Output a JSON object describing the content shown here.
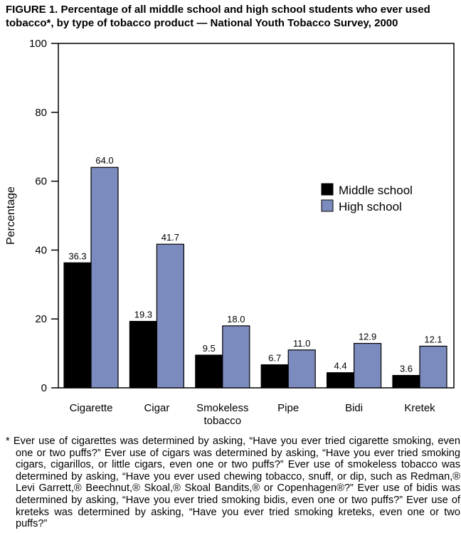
{
  "title": "FIGURE 1. Percentage of all middle school and high school students who ever used tobacco*, by type of tobacco product — National Youth Tobacco Survey, 2000",
  "chart_data": {
    "type": "bar",
    "title": "FIGURE 1. Percentage of all middle school and high school students who ever used tobacco*, by type of tobacco product — National Youth Tobacco Survey, 2000",
    "xlabel": "",
    "ylabel": "Percentage",
    "ylim": [
      0,
      100
    ],
    "yticks": [
      "0",
      "20",
      "40",
      "60",
      "80",
      "100"
    ],
    "categories": [
      "Cigarette",
      "Cigar",
      "Smokeless tobacco",
      "Pipe",
      "Bidi",
      "Kretek"
    ],
    "series": [
      {
        "name": "Middle school",
        "color": "#000000",
        "values": [
          36.3,
          19.3,
          9.5,
          6.7,
          4.4,
          3.6
        ],
        "labels": [
          "36.3",
          "19.3",
          "9.5",
          "6.7",
          "4.4",
          "3.6"
        ]
      },
      {
        "name": "High school",
        "color": "#7b8bbd",
        "values": [
          64.0,
          41.7,
          18.0,
          11.0,
          12.9,
          12.1
        ],
        "labels": [
          "64.0",
          "41.7",
          "18.0",
          "11.0",
          "12.9",
          "12.1"
        ]
      }
    ],
    "grid": false,
    "legend": "right"
  },
  "footnote": "* Ever use of cigarettes was determined by asking, “Have you ever tried cigarette smoking, even one or two puffs?” Ever use of cigars was determined by asking, “Have you ever tried smoking cigars, cigarillos, or little cigars, even one or two puffs?” Ever use of smokeless tobacco was determined by asking, “Have you ever used chewing tobacco, snuff, or dip, such as Redman,® Levi Garrett,® Beechnut,® Skoal,® Skoal Bandits,® or Copenhagen®?” Ever use of bidis was determined by asking, “Have you ever tried smoking bidis, even one or two puffs?” Ever use of kreteks was determined by asking, “Have you ever tried smoking kreteks, even one or two puffs?”"
}
